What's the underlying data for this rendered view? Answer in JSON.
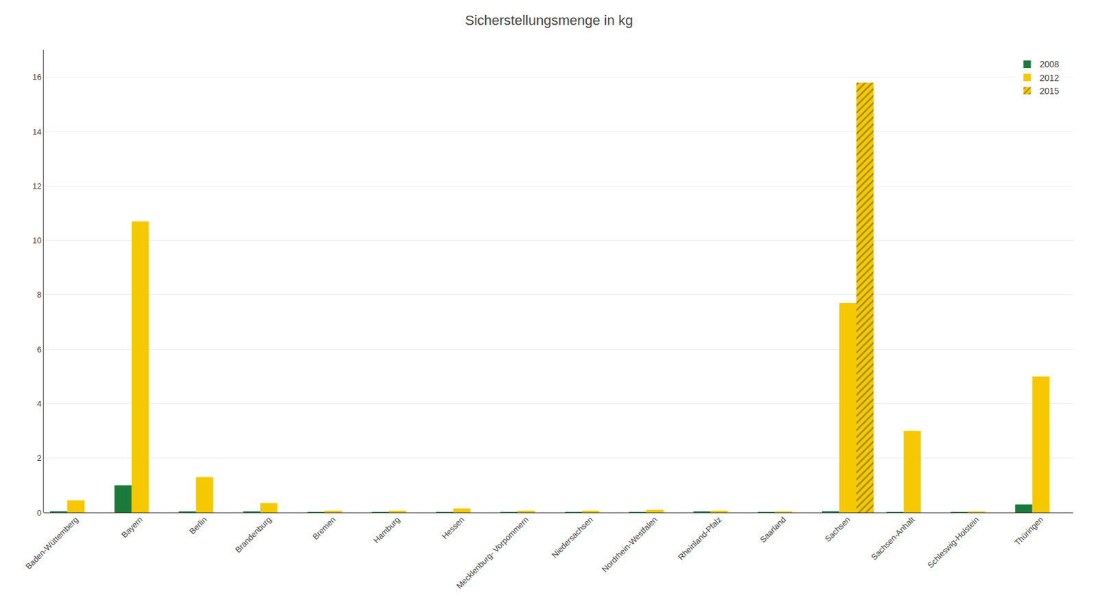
{
  "chart_data": {
    "type": "bar",
    "title": "Sicherstellungsmenge in kg",
    "categories": [
      "Baden-Wüttemberg",
      "Bayern",
      "Berlin",
      "Brandenburg",
      "Bremen",
      "Hamburg",
      "Hessen",
      "Mecklenburg- Vorpommern",
      "Niedersachsen",
      "Nordrhein-Westfalen",
      "Rheinland-Pfalz",
      "Saarland",
      "Sachsen",
      "Sachsen-Anhalt",
      "Schleswig-Holstein",
      "Thüringen"
    ],
    "series": [
      {
        "name": "2008",
        "color": "#1a7a3c",
        "values": [
          0.05,
          1.0,
          0.03,
          0.03,
          0.02,
          0.02,
          0.02,
          0.02,
          0.02,
          0.02,
          0.03,
          0.02,
          0.05,
          0.02,
          0.02,
          0.3
        ]
      },
      {
        "name": "2012",
        "color": "#f5c800",
        "values": [
          0.45,
          10.7,
          1.3,
          0.35,
          0.07,
          0.07,
          0.15,
          0.07,
          0.07,
          0.1,
          0.07,
          0.04,
          7.7,
          3.0,
          0.04,
          5.0
        ]
      },
      {
        "name": "2015",
        "color": "#f5c800",
        "marker": "hatch",
        "values": [
          0.0,
          0.0,
          0.0,
          0.0,
          0.0,
          0.0,
          0.0,
          0.0,
          0.0,
          0.0,
          0.0,
          0.0,
          15.8,
          0.0,
          0.0,
          0.0
        ]
      }
    ],
    "ylim": [
      0,
      17
    ],
    "yticks": [
      0,
      2,
      4,
      6,
      8,
      10,
      12,
      14,
      16
    ],
    "grid": true,
    "legend": "upper right"
  }
}
